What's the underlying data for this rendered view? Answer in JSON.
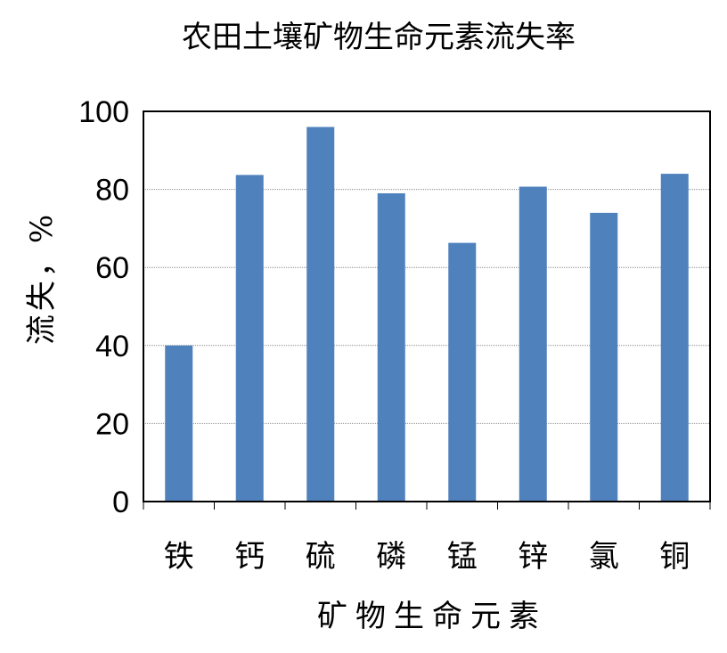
{
  "chart_data": {
    "type": "bar",
    "title": "农田土壤矿物生命元素流失率",
    "xlabel": "矿物生命元素",
    "ylabel": "流失，%",
    "categories": [
      "铁",
      "钙",
      "硫",
      "磷",
      "锰",
      "锌",
      "氯",
      "铜"
    ],
    "series": [
      {
        "values": [
          40,
          83.7,
          96,
          79,
          66.3,
          80.7,
          74,
          84
        ]
      }
    ],
    "ylim": [
      0,
      100
    ],
    "yticks": [
      "0",
      "20",
      "40",
      "60",
      "80",
      "100"
    ],
    "grid": true,
    "legend": "none",
    "bar_color": "#4f81bd",
    "grid_color": "#8c8c8c"
  }
}
